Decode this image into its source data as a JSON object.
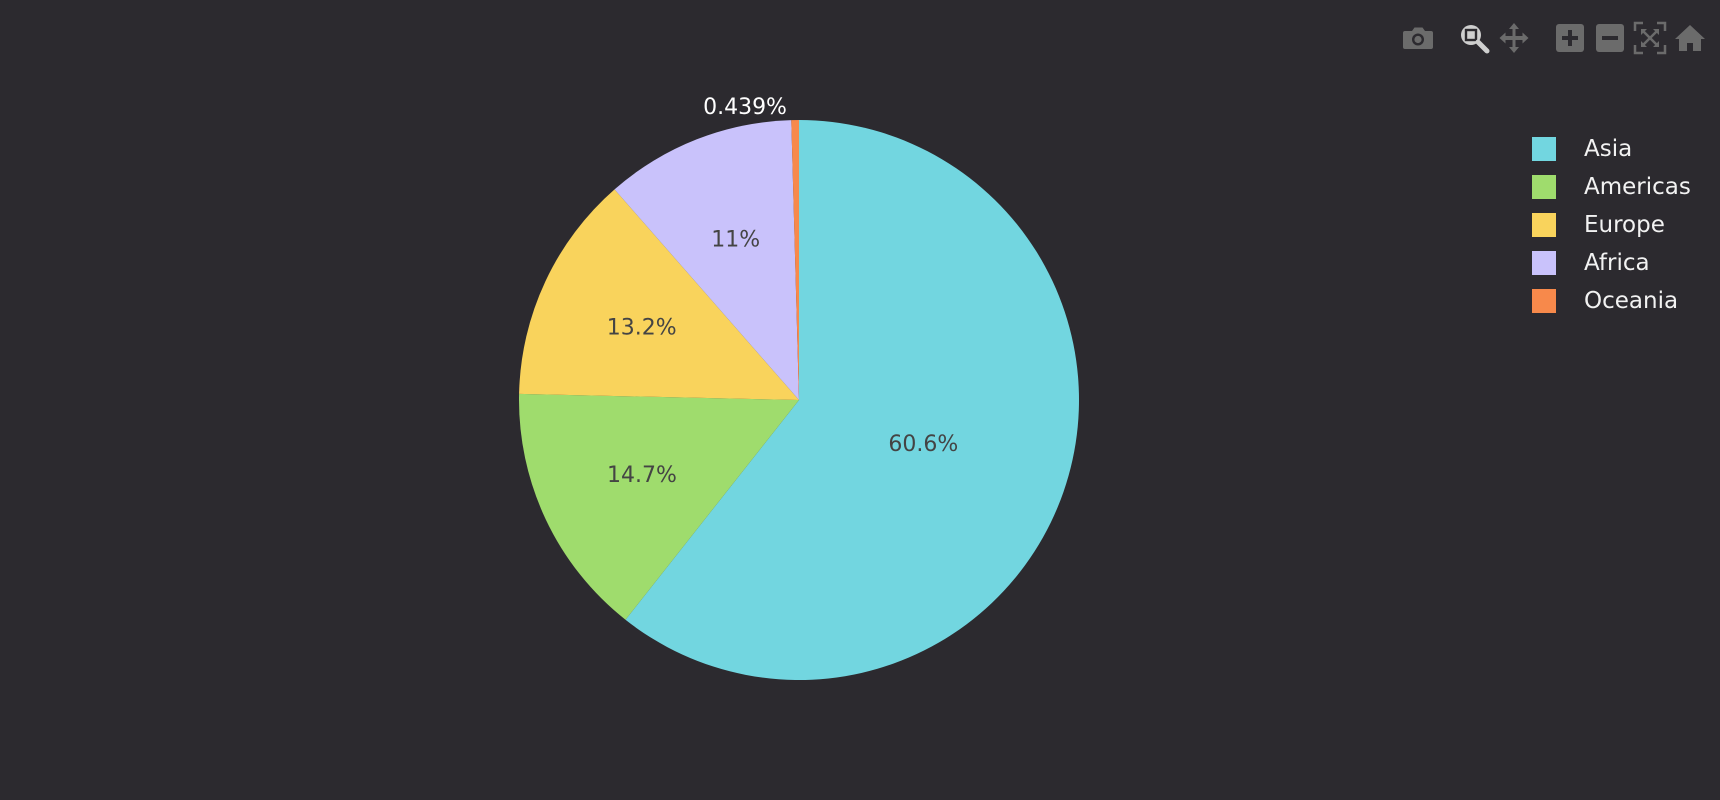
{
  "toolbar": {
    "buttons": [
      {
        "name": "download-png",
        "icon": "camera-icon"
      },
      {
        "name": "zoom",
        "icon": "zoom-icon"
      },
      {
        "name": "pan",
        "icon": "pan-icon"
      },
      {
        "name": "zoom-in",
        "icon": "zoom-in-icon"
      },
      {
        "name": "zoom-out",
        "icon": "zoom-out-icon"
      },
      {
        "name": "autoscale",
        "icon": "autoscale-icon"
      },
      {
        "name": "reset-axes",
        "icon": "home-icon"
      }
    ],
    "icon_color": "#6b6b6b",
    "active_icon_color": "#cfcfcf"
  },
  "chart_data": {
    "type": "pie",
    "labels": [
      "Asia",
      "Americas",
      "Europe",
      "Africa",
      "Oceania"
    ],
    "values": [
      60.6,
      14.7,
      13.2,
      11,
      0.439
    ],
    "text_labels": [
      "60.6%",
      "14.7%",
      "13.2%",
      "11%",
      "0.439%"
    ],
    "colors": [
      "#72d6e0",
      "#9fdc6d",
      "#f9d35c",
      "#c9c2fb",
      "#f7894b"
    ],
    "direction": "clockwise",
    "rotation_start": "top",
    "legend_position": "top-right",
    "background": "#2c2a2f"
  },
  "legend": {
    "items": [
      {
        "label": "Asia",
        "color": "#72d6e0"
      },
      {
        "label": "Americas",
        "color": "#9fdc6d"
      },
      {
        "label": "Europe",
        "color": "#f9d35c"
      },
      {
        "label": "Africa",
        "color": "#c9c2fb"
      },
      {
        "label": "Oceania",
        "color": "#f7894b"
      }
    ]
  }
}
